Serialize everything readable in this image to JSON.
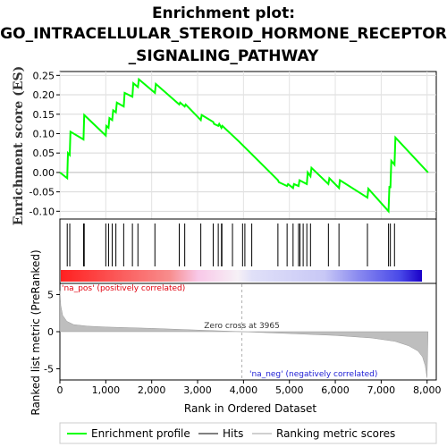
{
  "title_lines": [
    "Enrichment plot:",
    "GO_INTRACELLULAR_STEROID_HORMONE_RECEPTOR",
    "_SIGNALING_PATHWAY"
  ],
  "colors": {
    "enrichment": "#00ff00",
    "hits": "#000000",
    "metric": "#bebebe",
    "pos_label": "#e0000e",
    "neg_label": "#1c1cd4",
    "zero_line": "#c0c0c0"
  },
  "chart_data": [
    {
      "type": "line",
      "name": "enrichment-profile",
      "ylabel": "Enrichment score (ES)",
      "ylim": [
        -0.12,
        0.26
      ],
      "yticks": [
        "0.25",
        "0.20",
        "0.15",
        "0.10",
        "0.05",
        "0.00",
        "-0.05",
        "-0.10"
      ],
      "ytick_values": [
        0.25,
        0.2,
        0.15,
        0.1,
        0.05,
        0.0,
        -0.05,
        -0.1
      ],
      "xlim": [
        0,
        8200
      ],
      "series": [
        {
          "x": [
            0,
            160,
            175,
            215,
            230,
            515,
            530,
            1000,
            1010,
            1060,
            1080,
            1140,
            1160,
            1220,
            1240,
            1390,
            1410,
            1580,
            1600,
            1700,
            1720,
            2070,
            2090,
            2600,
            2620,
            2720,
            2740,
            3070,
            3090,
            3340,
            3360,
            3450,
            3470,
            3520,
            3540,
            3900,
            4200,
            4750,
            4770,
            4950,
            4970,
            5080,
            5100,
            5200,
            5220,
            5380,
            5400,
            5460,
            5480,
            5850,
            5870,
            6080,
            6100,
            6700,
            6720,
            7160,
            7180,
            7200,
            7220,
            7290,
            7310,
            8020
          ],
          "values": [
            0.0,
            -0.015,
            0.05,
            0.045,
            0.105,
            0.085,
            0.148,
            0.095,
            0.12,
            0.115,
            0.14,
            0.135,
            0.16,
            0.155,
            0.18,
            0.17,
            0.205,
            0.195,
            0.23,
            0.22,
            0.24,
            0.205,
            0.228,
            0.175,
            0.18,
            0.17,
            0.175,
            0.135,
            0.148,
            0.13,
            0.125,
            0.12,
            0.125,
            0.115,
            0.12,
            0.08,
            0.045,
            -0.02,
            -0.025,
            -0.035,
            -0.03,
            -0.04,
            -0.03,
            -0.035,
            -0.02,
            -0.03,
            0.0,
            -0.01,
            0.012,
            -0.03,
            -0.015,
            -0.04,
            -0.02,
            -0.065,
            -0.042,
            -0.1,
            -0.035,
            -0.04,
            0.03,
            0.02,
            0.09,
            0.0
          ]
        }
      ]
    },
    {
      "type": "scatter",
      "name": "hits",
      "x": [
        160,
        215,
        515,
        530,
        1000,
        1060,
        1140,
        1220,
        1390,
        1580,
        1700,
        2070,
        2600,
        2720,
        3070,
        3340,
        3450,
        3520,
        3530,
        3760,
        3980,
        4030,
        4180,
        4750,
        4950,
        5080,
        5200,
        5230,
        5300,
        5380,
        5460,
        5850,
        6080,
        6700,
        7160,
        7200,
        7290
      ]
    },
    {
      "type": "area",
      "name": "ranked-list-metric",
      "xlabel": "Rank in Ordered Dataset",
      "ylabel": "Ranked list metric (PreRanked)",
      "ylim": [
        -6.5,
        6.5
      ],
      "yticks": [
        "5",
        "0",
        "-5"
      ],
      "ytick_values": [
        5,
        0,
        -5
      ],
      "xlim": [
        0,
        8200
      ],
      "xticks": [
        "0",
        "1,000",
        "2,000",
        "3,000",
        "4,000",
        "5,000",
        "6,000",
        "7,000",
        "8,000"
      ],
      "xtick_values": [
        0,
        1000,
        2000,
        3000,
        4000,
        5000,
        6000,
        7000,
        8000
      ],
      "x": [
        0,
        20,
        60,
        150,
        300,
        600,
        1000,
        2000,
        3000,
        3965,
        5000,
        6000,
        6800,
        7300,
        7600,
        7800,
        7900,
        7960,
        8000,
        8020
      ],
      "values": [
        5.5,
        3.5,
        2.2,
        1.4,
        0.95,
        0.75,
        0.62,
        0.45,
        0.22,
        0.0,
        -0.25,
        -0.5,
        -0.85,
        -1.3,
        -1.9,
        -2.6,
        -3.4,
        -4.6,
        -6.2,
        0.0
      ],
      "annotations": {
        "zero_cross": "Zero cross at 3965",
        "zero_cross_x": 3965,
        "pos": "'na_pos' (positively correlated)",
        "neg": "'na_neg' (negatively correlated)"
      }
    }
  ],
  "legend": {
    "placement": "bottom",
    "items": [
      {
        "label": "Enrichment profile",
        "color": "#00ff00",
        "kind": "line"
      },
      {
        "label": "Hits",
        "color": "#808080",
        "kind": "line"
      },
      {
        "label": "Ranking metric scores",
        "color": "#d0d0d0",
        "kind": "line"
      }
    ]
  }
}
